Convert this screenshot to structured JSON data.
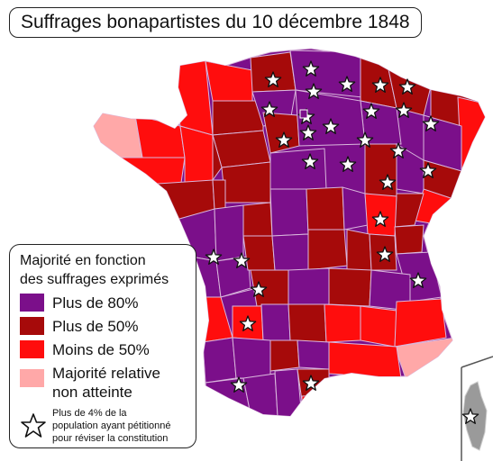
{
  "title": "Suffrages bonapartistes du 10 décembre 1848",
  "legend": {
    "title_line1": "Majorité en fonction",
    "title_line2": "des suffrages exprimés",
    "items": [
      {
        "label": "Plus de 80%",
        "color": "#7b0f8a"
      },
      {
        "label": "Plus de 50%",
        "color": "#a60a0a"
      },
      {
        "label": "Moins de 50%",
        "color": "#ff0d0d"
      },
      {
        "label_line1": "Majorité relative",
        "label_line2": "non atteinte",
        "color": "#ffa8a8"
      }
    ],
    "star_note_line1": "Plus de 4% de la",
    "star_note_line2": "population ayant pétitionné",
    "star_note_line3": "pour réviser la constitution",
    "star_icon": "star-outline-icon"
  },
  "colors": {
    "border": "#d9b7dc",
    "sea": "#ffffff",
    "inset_island": "#9a9a9a"
  }
}
